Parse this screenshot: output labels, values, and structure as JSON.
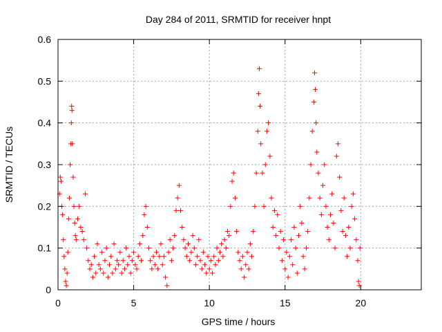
{
  "chart_data": {
    "type": "scatter",
    "title": "Day 284 of 2011, SRMTID for receiver hnpt",
    "xlabel": "GPS time / hours",
    "ylabel": "SRMTID / TECUs",
    "xlim": [
      0,
      24
    ],
    "ylim": [
      0,
      0.6
    ],
    "xticks": [
      0,
      5,
      10,
      15,
      20
    ],
    "yticks": [
      0,
      0.1,
      0.2,
      0.3,
      0.4,
      0.5,
      0.6
    ],
    "xtick_labels": [
      "0",
      "5",
      "10",
      "15",
      "20"
    ],
    "ytick_labels": [
      "0",
      "0.1",
      "0.2",
      "0.3",
      "0.4",
      "0.5",
      "0.6"
    ],
    "grid": true,
    "marker": "+",
    "color": "#ff0000",
    "series": [
      {
        "name": "SRMTID",
        "points": [
          [
            0.1,
            0.23
          ],
          [
            0.15,
            0.27
          ],
          [
            0.2,
            0.26
          ],
          [
            0.25,
            0.2
          ],
          [
            0.3,
            0.18
          ],
          [
            0.35,
            0.12
          ],
          [
            0.4,
            0.08
          ],
          [
            0.45,
            0.05
          ],
          [
            0.5,
            0.02
          ],
          [
            0.55,
            0.01
          ],
          [
            0.6,
            0.04
          ],
          [
            0.65,
            0.09
          ],
          [
            0.7,
            0.17
          ],
          [
            0.75,
            0.22
          ],
          [
            0.8,
            0.3
          ],
          [
            0.85,
            0.35
          ],
          [
            0.88,
            0.4
          ],
          [
            0.9,
            0.44
          ],
          [
            0.92,
            0.43
          ],
          [
            0.95,
            0.35
          ],
          [
            1.0,
            0.27
          ],
          [
            1.05,
            0.2
          ],
          [
            1.1,
            0.16
          ],
          [
            1.15,
            0.13
          ],
          [
            1.2,
            0.12
          ],
          [
            1.3,
            0.17
          ],
          [
            1.4,
            0.2
          ],
          [
            1.5,
            0.15
          ],
          [
            1.6,
            0.14
          ],
          [
            1.7,
            0.12
          ],
          [
            1.8,
            0.23
          ],
          [
            1.9,
            0.1
          ],
          [
            2.0,
            0.07
          ],
          [
            2.1,
            0.05
          ],
          [
            2.2,
            0.06
          ],
          [
            2.3,
            0.03
          ],
          [
            2.4,
            0.08
          ],
          [
            2.5,
            0.04
          ],
          [
            2.6,
            0.11
          ],
          [
            2.7,
            0.06
          ],
          [
            2.8,
            0.05
          ],
          [
            2.9,
            0.09
          ],
          [
            3.0,
            0.04
          ],
          [
            3.1,
            0.07
          ],
          [
            3.2,
            0.1
          ],
          [
            3.3,
            0.03
          ],
          [
            3.4,
            0.06
          ],
          [
            3.5,
            0.08
          ],
          [
            3.6,
            0.04
          ],
          [
            3.7,
            0.11
          ],
          [
            3.8,
            0.05
          ],
          [
            3.9,
            0.07
          ],
          [
            4.0,
            0.06
          ],
          [
            4.1,
            0.09
          ],
          [
            4.2,
            0.04
          ],
          [
            4.3,
            0.07
          ],
          [
            4.4,
            0.05
          ],
          [
            4.5,
            0.1
          ],
          [
            4.6,
            0.06
          ],
          [
            4.7,
            0.08
          ],
          [
            4.8,
            0.04
          ],
          [
            4.9,
            0.07
          ],
          [
            5.0,
            0.09
          ],
          [
            5.1,
            0.06
          ],
          [
            5.2,
            0.05
          ],
          [
            5.3,
            0.08
          ],
          [
            5.4,
            0.11
          ],
          [
            5.5,
            0.07
          ],
          [
            5.6,
            0.13
          ],
          [
            5.7,
            0.18
          ],
          [
            5.8,
            0.2
          ],
          [
            5.9,
            0.15
          ],
          [
            6.0,
            0.1
          ],
          [
            6.1,
            0.07
          ],
          [
            6.2,
            0.05
          ],
          [
            6.3,
            0.08
          ],
          [
            6.4,
            0.06
          ],
          [
            6.5,
            0.09
          ],
          [
            6.6,
            0.05
          ],
          [
            6.7,
            0.08
          ],
          [
            6.8,
            0.11
          ],
          [
            6.9,
            0.06
          ],
          [
            7.0,
            0.08
          ],
          [
            7.1,
            0.03
          ],
          [
            7.2,
            0.01
          ],
          [
            7.3,
            0.09
          ],
          [
            7.4,
            0.12
          ],
          [
            7.5,
            0.07
          ],
          [
            7.6,
            0.1
          ],
          [
            7.7,
            0.13
          ],
          [
            7.8,
            0.19
          ],
          [
            7.9,
            0.22
          ],
          [
            8.0,
            0.25
          ],
          [
            8.1,
            0.19
          ],
          [
            8.2,
            0.15
          ],
          [
            8.3,
            0.12
          ],
          [
            8.4,
            0.1
          ],
          [
            8.5,
            0.08
          ],
          [
            8.6,
            0.11
          ],
          [
            8.7,
            0.07
          ],
          [
            8.8,
            0.09
          ],
          [
            8.9,
            0.13
          ],
          [
            9.0,
            0.1
          ],
          [
            9.1,
            0.06
          ],
          [
            9.2,
            0.08
          ],
          [
            9.3,
            0.12
          ],
          [
            9.4,
            0.07
          ],
          [
            9.5,
            0.05
          ],
          [
            9.6,
            0.09
          ],
          [
            9.7,
            0.06
          ],
          [
            9.8,
            0.04
          ],
          [
            9.9,
            0.08
          ],
          [
            10.0,
            0.05
          ],
          [
            10.1,
            0.07
          ],
          [
            10.2,
            0.04
          ],
          [
            10.3,
            0.08
          ],
          [
            10.4,
            0.06
          ],
          [
            10.5,
            0.1
          ],
          [
            10.6,
            0.07
          ],
          [
            10.7,
            0.09
          ],
          [
            10.8,
            0.11
          ],
          [
            10.9,
            0.08
          ],
          [
            11.0,
            0.12
          ],
          [
            11.1,
            0.1
          ],
          [
            11.2,
            0.14
          ],
          [
            11.3,
            0.13
          ],
          [
            11.4,
            0.2
          ],
          [
            11.5,
            0.26
          ],
          [
            11.6,
            0.28
          ],
          [
            11.7,
            0.22
          ],
          [
            11.8,
            0.14
          ],
          [
            11.9,
            0.09
          ],
          [
            12.0,
            0.07
          ],
          [
            12.1,
            0.05
          ],
          [
            12.2,
            0.08
          ],
          [
            12.3,
            0.03
          ],
          [
            12.4,
            0.06
          ],
          [
            12.5,
            0.09
          ],
          [
            12.6,
            0.05
          ],
          [
            12.7,
            0.11
          ],
          [
            12.8,
            0.08
          ],
          [
            12.9,
            0.14
          ],
          [
            13.0,
            0.2
          ],
          [
            13.1,
            0.28
          ],
          [
            13.2,
            0.38
          ],
          [
            13.25,
            0.47
          ],
          [
            13.3,
            0.53
          ],
          [
            13.35,
            0.44
          ],
          [
            13.4,
            0.35
          ],
          [
            13.5,
            0.28
          ],
          [
            13.6,
            0.2
          ],
          [
            13.7,
            0.3
          ],
          [
            13.8,
            0.38
          ],
          [
            13.9,
            0.4
          ],
          [
            14.0,
            0.32
          ],
          [
            14.1,
            0.22
          ],
          [
            14.2,
            0.15
          ],
          [
            14.3,
            0.19
          ],
          [
            14.4,
            0.13
          ],
          [
            14.5,
            0.18
          ],
          [
            14.6,
            0.1
          ],
          [
            14.7,
            0.14
          ],
          [
            14.8,
            0.07
          ],
          [
            14.9,
            0.12
          ],
          [
            15.0,
            0.05
          ],
          [
            15.1,
            0.09
          ],
          [
            15.2,
            0.03
          ],
          [
            15.3,
            0.08
          ],
          [
            15.4,
            0.12
          ],
          [
            15.5,
            0.06
          ],
          [
            15.6,
            0.15
          ],
          [
            15.7,
            0.1
          ],
          [
            15.8,
            0.04
          ],
          [
            15.9,
            0.13
          ],
          [
            16.0,
            0.2
          ],
          [
            16.1,
            0.16
          ],
          [
            16.2,
            0.08
          ],
          [
            16.3,
            0.05
          ],
          [
            16.4,
            0.1
          ],
          [
            16.5,
            0.14
          ],
          [
            16.6,
            0.22
          ],
          [
            16.7,
            0.3
          ],
          [
            16.8,
            0.38
          ],
          [
            16.9,
            0.45
          ],
          [
            16.95,
            0.52
          ],
          [
            17.0,
            0.48
          ],
          [
            17.05,
            0.4
          ],
          [
            17.1,
            0.33
          ],
          [
            17.2,
            0.28
          ],
          [
            17.3,
            0.22
          ],
          [
            17.4,
            0.18
          ],
          [
            17.5,
            0.25
          ],
          [
            17.6,
            0.3
          ],
          [
            17.7,
            0.2
          ],
          [
            17.8,
            0.15
          ],
          [
            17.9,
            0.12
          ],
          [
            18.0,
            0.18
          ],
          [
            18.1,
            0.23
          ],
          [
            18.2,
            0.16
          ],
          [
            18.3,
            0.1
          ],
          [
            18.4,
            0.32
          ],
          [
            18.5,
            0.35
          ],
          [
            18.6,
            0.27
          ],
          [
            18.7,
            0.19
          ],
          [
            18.8,
            0.14
          ],
          [
            18.9,
            0.22
          ],
          [
            19.0,
            0.13
          ],
          [
            19.1,
            0.08
          ],
          [
            19.2,
            0.15
          ],
          [
            19.3,
            0.1
          ],
          [
            19.4,
            0.2
          ],
          [
            19.5,
            0.23
          ],
          [
            19.6,
            0.17
          ],
          [
            19.7,
            0.12
          ],
          [
            19.8,
            0.07
          ],
          [
            19.85,
            0.02
          ],
          [
            19.9,
            0.01
          ],
          [
            19.95,
            0.1
          ]
        ]
      }
    ]
  }
}
